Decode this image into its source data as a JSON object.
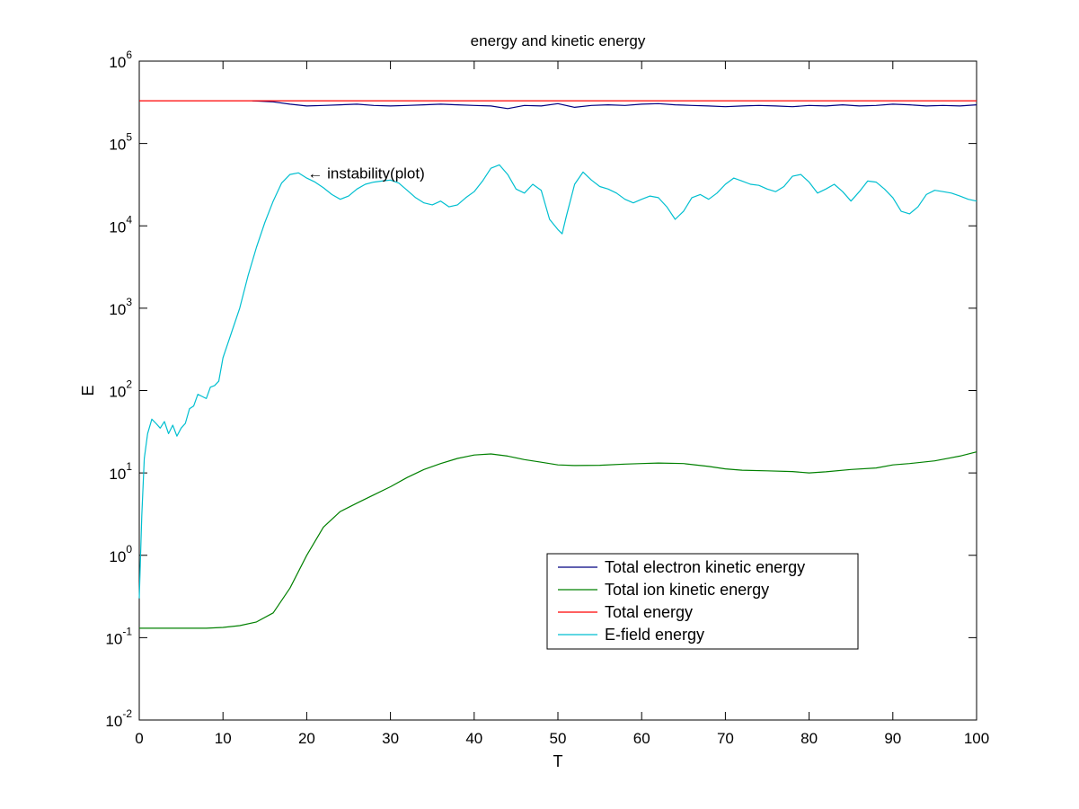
{
  "chart_data": {
    "type": "line",
    "title": "energy and kinetic energy",
    "xlabel": "T",
    "ylabel": "E",
    "xlim": [
      0,
      100
    ],
    "ylim": [
      0.01,
      1000000
    ],
    "yscale": "log",
    "grid": false,
    "legend_position": "lower-right",
    "x_ticks": [
      "0",
      "10",
      "20",
      "30",
      "40",
      "50",
      "60",
      "70",
      "80",
      "90",
      "100"
    ],
    "y_ticks": [
      {
        "base": "10",
        "exp": "-2"
      },
      {
        "base": "10",
        "exp": "-1"
      },
      {
        "base": "10",
        "exp": "0"
      },
      {
        "base": "10",
        "exp": "1"
      },
      {
        "base": "10",
        "exp": "2"
      },
      {
        "base": "10",
        "exp": "3"
      },
      {
        "base": "10",
        "exp": "4"
      },
      {
        "base": "10",
        "exp": "5"
      },
      {
        "base": "10",
        "exp": "6"
      }
    ],
    "annotation": {
      "text": "← instability(plot)",
      "x": 20,
      "y": 44000
    },
    "series": [
      {
        "name": "Total electron kinetic energy",
        "color": "#000080",
        "x": [
          13.5,
          16,
          18,
          20,
          22,
          24,
          26,
          28,
          30,
          32,
          34,
          36,
          38,
          40,
          42,
          44,
          46,
          48,
          50,
          52,
          54,
          56,
          58,
          60,
          62,
          64,
          66,
          68,
          70,
          72,
          74,
          76,
          78,
          80,
          82,
          84,
          86,
          88,
          90,
          92,
          94,
          96,
          98,
          100
        ],
        "y": [
          330000,
          320000,
          300000,
          285000,
          290000,
          295000,
          300000,
          290000,
          285000,
          290000,
          295000,
          300000,
          295000,
          290000,
          285000,
          265000,
          290000,
          285000,
          305000,
          275000,
          290000,
          295000,
          290000,
          300000,
          305000,
          295000,
          290000,
          285000,
          280000,
          285000,
          290000,
          285000,
          280000,
          290000,
          285000,
          295000,
          285000,
          290000,
          300000,
          295000,
          285000,
          290000,
          285000,
          295000
        ]
      },
      {
        "name": "Total ion kinetic energy",
        "color": "#008000",
        "x": [
          0,
          5,
          8,
          10,
          12,
          14,
          16,
          18,
          20,
          22,
          24,
          26,
          28,
          30,
          32,
          34,
          36,
          38,
          40,
          42,
          44,
          46,
          48,
          50,
          52,
          55,
          58,
          60,
          62,
          65,
          68,
          70,
          72,
          75,
          78,
          80,
          82,
          85,
          88,
          90,
          92,
          95,
          98,
          100
        ],
        "y": [
          0.13,
          0.13,
          0.13,
          0.133,
          0.14,
          0.155,
          0.2,
          0.4,
          1.0,
          2.2,
          3.4,
          4.3,
          5.4,
          6.8,
          8.8,
          11.0,
          13.0,
          15.0,
          16.5,
          17.0,
          16.0,
          14.5,
          13.5,
          12.5,
          12.3,
          12.4,
          12.8,
          13.0,
          13.2,
          13.0,
          12.0,
          11.2,
          10.8,
          10.6,
          10.4,
          10.0,
          10.3,
          11.0,
          11.5,
          12.5,
          13.0,
          14.0,
          16.0,
          18.0
        ]
      },
      {
        "name": "Total energy",
        "color": "#ff0000",
        "x": [
          0,
          100
        ],
        "y": [
          330000,
          330000
        ]
      },
      {
        "name": "E-field energy",
        "color": "#00bfd0",
        "x": [
          0,
          0.3,
          0.6,
          1.0,
          1.5,
          2.0,
          2.5,
          3.0,
          3.5,
          4.0,
          4.5,
          5.0,
          5.5,
          6.0,
          6.5,
          7.0,
          7.5,
          8.0,
          8.5,
          9.0,
          9.5,
          10,
          11,
          12,
          13,
          14,
          15,
          16,
          17,
          18,
          19,
          20,
          21,
          22,
          23,
          24,
          25,
          26,
          27,
          28,
          29,
          30,
          31,
          32,
          33,
          34,
          35,
          36,
          37,
          38,
          39,
          40,
          41,
          42,
          43,
          44,
          45,
          46,
          47,
          48,
          49,
          50,
          50.5,
          51,
          52,
          53,
          54,
          55,
          56,
          57,
          58,
          59,
          60,
          61,
          62,
          63,
          64,
          65,
          66,
          67,
          68,
          69,
          70,
          71,
          72,
          73,
          74,
          75,
          76,
          77,
          78,
          79,
          80,
          81,
          82,
          83,
          84,
          85,
          86,
          87,
          88,
          89,
          90,
          91,
          92,
          93,
          94,
          95,
          96,
          97,
          98,
          99,
          100
        ],
        "y": [
          0.3,
          3,
          15,
          30,
          45,
          40,
          35,
          42,
          30,
          38,
          28,
          35,
          40,
          60,
          65,
          90,
          85,
          80,
          110,
          115,
          130,
          250,
          500,
          1000,
          2500,
          5500,
          11000,
          20000,
          33000,
          42000,
          44000,
          38000,
          34000,
          29000,
          24000,
          21000,
          23000,
          28000,
          32000,
          34000,
          35000,
          36000,
          33000,
          27000,
          22000,
          19000,
          18000,
          20000,
          17000,
          18000,
          22000,
          26000,
          35000,
          50000,
          55000,
          42000,
          28000,
          25000,
          32000,
          27000,
          12000,
          9000,
          8000,
          13000,
          32000,
          45000,
          36000,
          30000,
          28000,
          25000,
          21000,
          19000,
          21000,
          23000,
          22000,
          17000,
          12000,
          15000,
          22000,
          24000,
          21000,
          25000,
          32000,
          38000,
          35000,
          32000,
          31000,
          28000,
          26000,
          30000,
          40000,
          42000,
          34000,
          25000,
          28000,
          32000,
          26000,
          20000,
          26000,
          35000,
          34000,
          28000,
          22000,
          15000,
          14000,
          17000,
          24000,
          27000,
          26000,
          25000,
          23000,
          21000,
          20000
        ]
      }
    ]
  }
}
